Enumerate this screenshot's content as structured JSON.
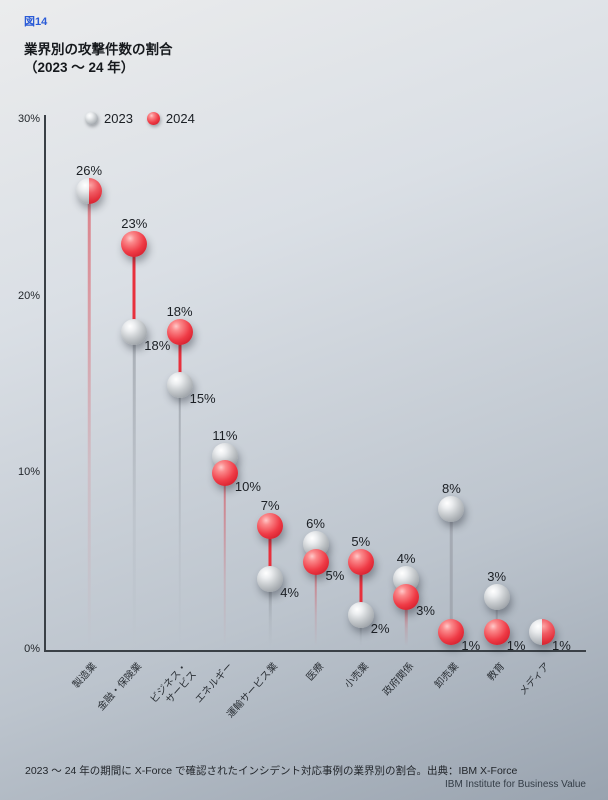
{
  "header": {
    "figure_label": "図14",
    "title": "業界別の攻撃件数の割合",
    "subtitle": "（2023 ～ 24 年）"
  },
  "footer": {
    "caption": "2023 ～ 24 年の期間に X-Force で確認されたインシデント対応事例の業界別の割合。出典：IBM X-Force",
    "branding": "IBM Institute for Business Value"
  },
  "colors": {
    "red_2024": "#e8303c",
    "gray_2023": "#b9bdc2",
    "axis": "#3a4046",
    "figure_label_blue": "#2a5bd7"
  },
  "chart_data": {
    "type": "lollipop-dot",
    "title": "業界別の攻撃件数の割合（2023 ～ 24 年）",
    "unit": "%",
    "categories": [
      "製造業",
      "金融・保険業",
      "ビジネス・\nサービス",
      "エネルギー",
      "運輸サービス業",
      "医療",
      "小売業",
      "政府関係",
      "卸売業",
      "教育",
      "メディア"
    ],
    "series": [
      {
        "name": "2023",
        "color": "gray",
        "values": [
          26,
          18,
          15,
          11,
          4,
          6,
          2,
          4,
          8,
          3,
          1
        ]
      },
      {
        "name": "2024",
        "color": "red",
        "values": [
          26,
          23,
          18,
          10,
          7,
          5,
          5,
          3,
          1,
          1,
          1
        ]
      }
    ],
    "ylim": [
      0,
      30
    ],
    "ytick_values": [
      30,
      20,
      10,
      0
    ],
    "ytick_labels": [
      "30%",
      "20%",
      "10%",
      "0%"
    ],
    "grid": false,
    "legend_position": "top-left"
  }
}
